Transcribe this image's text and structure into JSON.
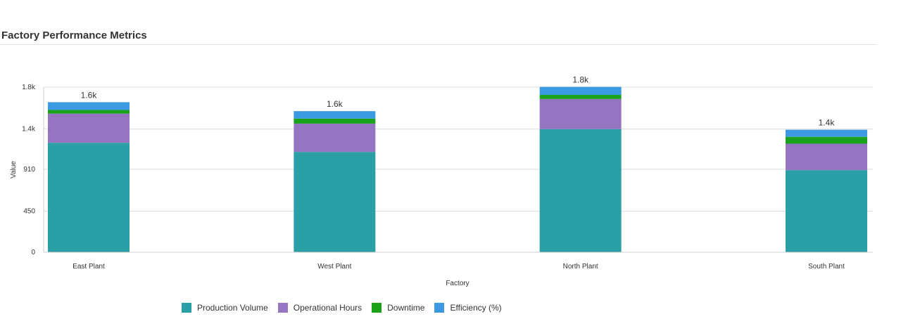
{
  "chart_data": {
    "type": "bar",
    "stacked": true,
    "title": "Factory Performance Metrics",
    "xlabel": "Factory",
    "ylabel": "Value",
    "categories": [
      "East Plant",
      "West Plant",
      "North Plant",
      "South Plant"
    ],
    "series": [
      {
        "name": "Production Volume",
        "color": "#2a9fa5",
        "values": [
          1200,
          1100,
          1350,
          900
        ]
      },
      {
        "name": "Operational Hours",
        "color": "#9575c1",
        "values": [
          320,
          310,
          330,
          290
        ]
      },
      {
        "name": "Downtime",
        "color": "#1aa31a",
        "values": [
          40,
          55,
          45,
          75
        ]
      },
      {
        "name": "Efficiency (%)",
        "color": "#3b9ae1",
        "values": [
          85,
          82,
          88,
          78
        ]
      }
    ],
    "totals": [
      "1.6k",
      "1.6k",
      "1.8k",
      "1.4k"
    ],
    "yticks": [
      {
        "value": 0,
        "label": "0"
      },
      {
        "value": 450,
        "label": "450"
      },
      {
        "value": 910,
        "label": "910"
      },
      {
        "value": 1350,
        "label": "1.4k"
      },
      {
        "value": 1810,
        "label": "1.8k"
      }
    ],
    "ylim": [
      0,
      1810
    ],
    "grid": true,
    "legend_position": "bottom"
  }
}
